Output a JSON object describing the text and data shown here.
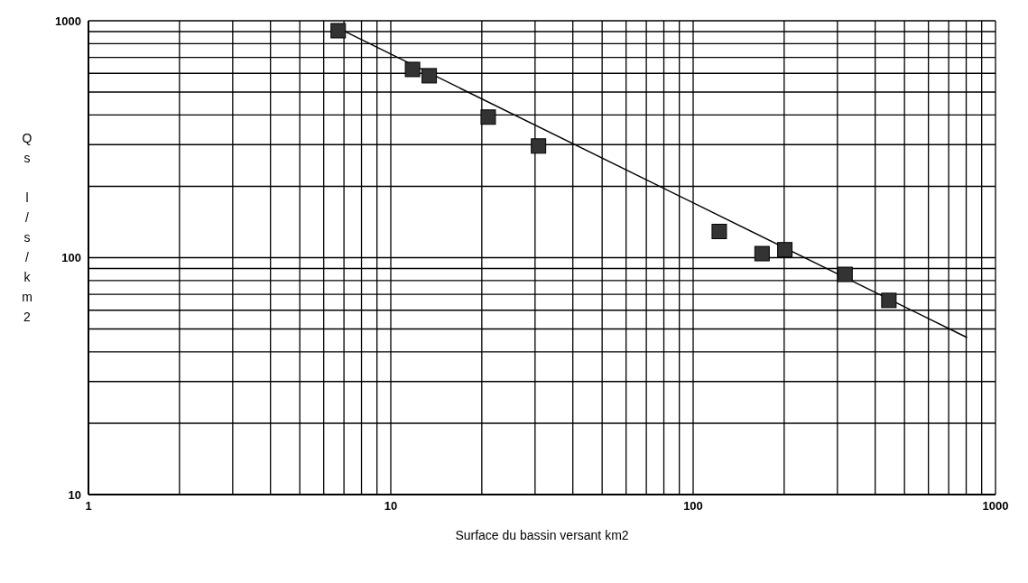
{
  "chart_data": {
    "type": "scatter",
    "xlabel": "Surface du bassin versant km2",
    "ylabel": "Qs l/s/km2",
    "log": "xy",
    "grid": true,
    "legend": false,
    "xlim": [
      1,
      1000
    ],
    "ylim": [
      10,
      1000
    ],
    "xticks": [
      1,
      {
        "value": 2,
        "label": null
      },
      {
        "value": 3,
        "label": null
      },
      {
        "value": 4,
        "label": null
      },
      {
        "value": 5,
        "label": null
      },
      {
        "value": 6,
        "label": null
      },
      {
        "value": 7,
        "label": null
      },
      {
        "value": 8,
        "label": null
      },
      {
        "value": 9,
        "label": null
      },
      10,
      {
        "value": 20,
        "label": null
      },
      {
        "value": 30,
        "label": null
      },
      {
        "value": 40,
        "label": null
      },
      {
        "value": 50,
        "label": null
      },
      {
        "value": 60,
        "label": null
      },
      {
        "value": 70,
        "label": null
      },
      {
        "value": 80,
        "label": null
      },
      {
        "value": 90,
        "label": null
      },
      100,
      {
        "value": 200,
        "label": null
      },
      {
        "value": 300,
        "label": null
      },
      {
        "value": 400,
        "label": null
      },
      {
        "value": 500,
        "label": null
      },
      {
        "value": 600,
        "label": null
      },
      {
        "value": 700,
        "label": null
      },
      {
        "value": 800,
        "label": null
      },
      {
        "value": 900,
        "label": null
      },
      1000
    ],
    "yticks": [
      10,
      {
        "value": 20,
        "label": null
      },
      {
        "value": 30,
        "label": null
      },
      {
        "value": 40,
        "label": null
      },
      {
        "value": 50,
        "label": null
      },
      {
        "value": 60,
        "label": null
      },
      {
        "value": 70,
        "label": null
      },
      {
        "value": 80,
        "label": null
      },
      {
        "value": 90,
        "label": null
      },
      100,
      {
        "value": 200,
        "label": null
      },
      {
        "value": 300,
        "label": null
      },
      {
        "value": 400,
        "label": null
      },
      {
        "value": 500,
        "label": null
      },
      {
        "value": 600,
        "label": null
      },
      {
        "value": 700,
        "label": null
      },
      {
        "value": 800,
        "label": null
      },
      {
        "value": 900,
        "label": null
      },
      1000
    ],
    "series": [
      {
        "color": "#333333",
        "marker": "square",
        "x": [
          6.7,
          11.8,
          13.4,
          21,
          30.8,
          122,
          169,
          201,
          318,
          444
        ],
        "values": [
          908,
          623,
          586,
          392,
          296,
          129,
          104,
          108,
          85,
          66
        ]
      },
      {
        "type": "line",
        "color": "#000000",
        "marker": "none",
        "line_style": "solid",
        "x": [
          6.67,
          805
        ],
        "values": [
          933,
          46
        ]
      }
    ]
  }
}
